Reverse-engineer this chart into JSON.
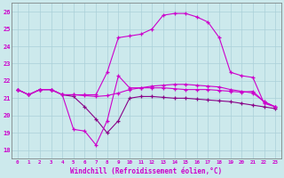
{
  "xlabel": "Windchill (Refroidissement éolien,°C)",
  "bg_color": "#cce9ec",
  "grid_color": "#aad0d8",
  "line_color1": "#cc00cc",
  "line_color2": "#880088",
  "hours": [
    0,
    1,
    2,
    3,
    4,
    5,
    6,
    7,
    8,
    9,
    10,
    11,
    12,
    13,
    14,
    15,
    16,
    17,
    18,
    19,
    20,
    21,
    22,
    23
  ],
  "series1": [
    21.5,
    21.2,
    21.5,
    21.5,
    21.2,
    21.2,
    21.15,
    21.1,
    21.15,
    21.3,
    21.5,
    21.6,
    21.7,
    21.75,
    21.8,
    21.8,
    21.75,
    21.7,
    21.65,
    21.5,
    21.4,
    21.3,
    20.8,
    20.5
  ],
  "series2": [
    21.5,
    21.2,
    21.5,
    21.5,
    21.2,
    21.1,
    20.5,
    19.8,
    19.0,
    19.7,
    21.0,
    21.1,
    21.1,
    21.05,
    21.0,
    21.0,
    20.95,
    20.9,
    20.85,
    20.8,
    20.7,
    20.6,
    20.5,
    20.4
  ],
  "series3": [
    21.5,
    21.2,
    21.5,
    21.5,
    21.2,
    19.2,
    19.1,
    18.3,
    19.7,
    22.3,
    21.6,
    21.6,
    21.6,
    21.6,
    21.55,
    21.5,
    21.5,
    21.5,
    21.45,
    21.4,
    21.35,
    21.4,
    20.8,
    20.5
  ],
  "series4": [
    21.5,
    21.2,
    21.5,
    21.5,
    21.2,
    21.2,
    21.2,
    21.2,
    22.5,
    24.5,
    24.6,
    24.7,
    25.0,
    25.8,
    25.9,
    25.9,
    25.7,
    25.4,
    24.5,
    22.5,
    22.3,
    22.2,
    20.7,
    20.5
  ],
  "ylim": [
    17.5,
    26.5
  ],
  "yticks": [
    18,
    19,
    20,
    21,
    22,
    23,
    24,
    25,
    26
  ],
  "ytick_labels": [
    "18",
    "19",
    "20",
    "21",
    "22",
    "23",
    "24",
    "25",
    "26"
  ]
}
